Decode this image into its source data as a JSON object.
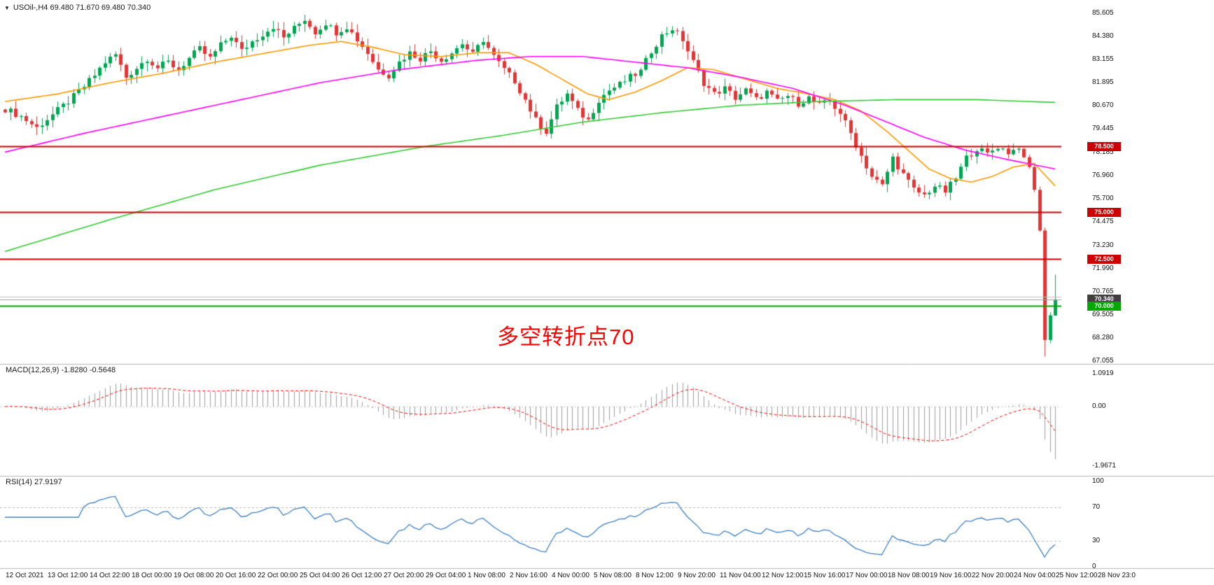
{
  "header": {
    "dropdown_icon": "▼",
    "title": "USOil-,H4 69.480 71.670 69.480 70.340"
  },
  "annotation": {
    "text": "多空转折点70",
    "color": "#FF0000"
  },
  "price_axis": {
    "labels": [
      "85.605",
      "84.380",
      "83.155",
      "81.895",
      "80.670",
      "79.445",
      "78.185",
      "76.960",
      "75.700",
      "74.475",
      "73.230",
      "71.990",
      "70.765",
      "69.505",
      "68.280",
      "67.055"
    ],
    "values": [
      85.605,
      84.38,
      83.155,
      81.895,
      80.67,
      79.445,
      78.185,
      76.96,
      75.7,
      74.475,
      73.23,
      71.99,
      70.765,
      69.505,
      68.28,
      67.055
    ]
  },
  "levels": [
    {
      "value": 78.5,
      "label": "78.500",
      "line_color": "#CC0000",
      "tag_bg": "#CC0000",
      "tag_fg": "#FFFFFF",
      "line_width": 2
    },
    {
      "value": 75.0,
      "label": "75.000",
      "line_color": "#CC0000",
      "tag_bg": "#CC0000",
      "tag_fg": "#FFFFFF",
      "line_width": 2
    },
    {
      "value": 72.5,
      "label": "72.500",
      "line_color": "#CC0000",
      "tag_bg": "#CC0000",
      "tag_fg": "#FFFFFF",
      "line_width": 2
    },
    {
      "value": 70.5,
      "label": "",
      "line_color": "#C0C0C0",
      "tag_bg": "",
      "tag_fg": "",
      "line_width": 1
    },
    {
      "value": 70.34,
      "label": "70.340",
      "line_color": "#9E9E9E",
      "tag_bg": "#3F3F3F",
      "tag_fg": "#FFFFFF",
      "line_width": 1
    },
    {
      "value": 70.0,
      "label": "70.000",
      "line_color": "#00A800",
      "tag_bg": "#00A800",
      "tag_fg": "#FFFFFF",
      "line_width": 2
    }
  ],
  "chart_data": {
    "type": "candlestick",
    "symbol": "USOil-",
    "period": "H4",
    "bars": 201,
    "y_range": [
      67.055,
      85.605
    ],
    "last_bar": {
      "open": 69.48,
      "high": 71.67,
      "low": 69.48,
      "close": 70.34
    },
    "crash_low": 67.3,
    "price_anchors": [
      [
        0,
        80.5
      ],
      [
        3,
        80.1
      ],
      [
        6,
        79.5
      ],
      [
        9,
        80.2
      ],
      [
        12,
        80.9
      ],
      [
        15,
        81.7
      ],
      [
        17,
        82.3
      ],
      [
        19,
        83.0
      ],
      [
        21,
        83.4
      ],
      [
        23,
        82.2
      ],
      [
        25,
        82.7
      ],
      [
        27,
        83.2
      ],
      [
        29,
        82.7
      ],
      [
        31,
        83.0
      ],
      [
        33,
        82.6
      ],
      [
        35,
        83.2
      ],
      [
        37,
        83.7
      ],
      [
        39,
        83.2
      ],
      [
        41,
        83.9
      ],
      [
        43,
        84.4
      ],
      [
        45,
        83.6
      ],
      [
        47,
        84.1
      ],
      [
        49,
        84.5
      ],
      [
        51,
        84.9
      ],
      [
        53,
        84.3
      ],
      [
        55,
        84.8
      ],
      [
        57,
        85.3
      ],
      [
        59,
        84.6
      ],
      [
        61,
        85.1
      ],
      [
        63,
        84.6
      ],
      [
        65,
        84.9
      ],
      [
        67,
        84.2
      ],
      [
        69,
        83.5
      ],
      [
        71,
        82.6
      ],
      [
        73,
        82.3
      ],
      [
        75,
        83.0
      ],
      [
        77,
        83.5
      ],
      [
        79,
        83.2
      ],
      [
        81,
        83.6
      ],
      [
        83,
        83.1
      ],
      [
        85,
        83.5
      ],
      [
        87,
        84.0
      ],
      [
        89,
        83.4
      ],
      [
        91,
        84.2
      ],
      [
        93,
        83.3
      ],
      [
        95,
        82.6
      ],
      [
        97,
        82.0
      ],
      [
        99,
        81.0
      ],
      [
        101,
        79.9
      ],
      [
        103,
        79.3
      ],
      [
        105,
        80.6
      ],
      [
        107,
        81.3
      ],
      [
        109,
        80.4
      ],
      [
        111,
        79.9
      ],
      [
        113,
        81.0
      ],
      [
        115,
        81.5
      ],
      [
        117,
        81.8
      ],
      [
        119,
        82.2
      ],
      [
        121,
        82.5
      ],
      [
        123,
        83.6
      ],
      [
        125,
        84.4
      ],
      [
        127,
        84.8
      ],
      [
        129,
        84.2
      ],
      [
        131,
        83.0
      ],
      [
        133,
        81.9
      ],
      [
        135,
        81.3
      ],
      [
        137,
        81.6
      ],
      [
        139,
        81.1
      ],
      [
        141,
        81.5
      ],
      [
        143,
        81.0
      ],
      [
        145,
        81.4
      ],
      [
        147,
        80.9
      ],
      [
        149,
        81.2
      ],
      [
        151,
        80.8
      ],
      [
        153,
        81.1
      ],
      [
        155,
        80.7
      ],
      [
        157,
        80.9
      ],
      [
        159,
        80.3
      ],
      [
        161,
        79.2
      ],
      [
        163,
        78.0
      ],
      [
        165,
        76.9
      ],
      [
        167,
        76.4
      ],
      [
        169,
        77.9
      ],
      [
        171,
        77.0
      ],
      [
        173,
        76.2
      ],
      [
        175,
        75.9
      ],
      [
        177,
        76.4
      ],
      [
        179,
        76.1
      ],
      [
        181,
        76.8
      ],
      [
        183,
        77.9
      ],
      [
        185,
        78.4
      ],
      [
        187,
        78.1
      ],
      [
        189,
        78.5
      ],
      [
        191,
        78.2
      ],
      [
        193,
        78.4
      ],
      [
        194,
        77.9
      ],
      [
        195,
        77.4
      ],
      [
        196,
        76.2
      ],
      [
        197,
        74.0
      ],
      [
        198,
        68.2
      ],
      [
        199,
        69.5
      ],
      [
        200,
        70.34
      ]
    ],
    "moving_averages": [
      {
        "name": "ma-fast-orange",
        "color": "#FF9900",
        "path": [
          [
            0,
            80.9
          ],
          [
            10,
            81.3
          ],
          [
            20,
            81.9
          ],
          [
            30,
            82.4
          ],
          [
            40,
            83.0
          ],
          [
            50,
            83.5
          ],
          [
            58,
            83.9
          ],
          [
            64,
            84.1
          ],
          [
            70,
            83.8
          ],
          [
            76,
            83.4
          ],
          [
            83,
            83.3
          ],
          [
            90,
            83.5
          ],
          [
            96,
            83.5
          ],
          [
            101,
            82.9
          ],
          [
            106,
            82.1
          ],
          [
            111,
            81.3
          ],
          [
            115,
            81.0
          ],
          [
            120,
            81.4
          ],
          [
            125,
            82.0
          ],
          [
            130,
            82.7
          ],
          [
            135,
            82.6
          ],
          [
            141,
            82.1
          ],
          [
            147,
            81.6
          ],
          [
            153,
            81.3
          ],
          [
            158,
            81.0
          ],
          [
            163,
            80.4
          ],
          [
            168,
            79.3
          ],
          [
            172,
            78.3
          ],
          [
            176,
            77.3
          ],
          [
            180,
            76.8
          ],
          [
            184,
            76.6
          ],
          [
            188,
            76.9
          ],
          [
            192,
            77.4
          ],
          [
            196,
            77.6
          ],
          [
            200,
            76.4
          ]
        ]
      },
      {
        "name": "ma-mid-magenta",
        "color": "#FF00FF",
        "path": [
          [
            0,
            78.2
          ],
          [
            15,
            79.2
          ],
          [
            30,
            80.1
          ],
          [
            45,
            81.0
          ],
          [
            60,
            81.9
          ],
          [
            75,
            82.6
          ],
          [
            90,
            83.1
          ],
          [
            100,
            83.3
          ],
          [
            110,
            83.3
          ],
          [
            120,
            83.0
          ],
          [
            130,
            82.7
          ],
          [
            140,
            82.2
          ],
          [
            150,
            81.6
          ],
          [
            160,
            80.7
          ],
          [
            168,
            79.8
          ],
          [
            175,
            79.0
          ],
          [
            183,
            78.3
          ],
          [
            191,
            77.8
          ],
          [
            200,
            77.3
          ]
        ]
      },
      {
        "name": "ma-slow-green",
        "color": "#33CC33",
        "path": [
          [
            0,
            72.9
          ],
          [
            20,
            74.6
          ],
          [
            40,
            76.2
          ],
          [
            60,
            77.5
          ],
          [
            80,
            78.5
          ],
          [
            95,
            79.1
          ],
          [
            110,
            79.8
          ],
          [
            125,
            80.3
          ],
          [
            140,
            80.7
          ],
          [
            155,
            80.9
          ],
          [
            170,
            81.0
          ],
          [
            185,
            81.0
          ],
          [
            200,
            80.85
          ]
        ]
      }
    ],
    "colors": {
      "up": "#00A651",
      "down": "#E23636",
      "macd_hist": "#9E9E9E",
      "macd_signal": "#FF0000",
      "rsi": "#4080C0",
      "rsi_levels": "#B8B8B8"
    }
  },
  "indicators": {
    "macd": {
      "label": "MACD(12,26,9) -1.8280 -0.5648",
      "params": [
        12,
        26,
        9
      ],
      "values": [
        -1.828,
        -0.5648
      ],
      "axis": [
        "1.0919",
        "0.00",
        "-1.9671"
      ],
      "axis_values": [
        1.0919,
        0,
        -1.9671
      ]
    },
    "rsi": {
      "label": "RSI(14) 27.9197",
      "period": 14,
      "value": 27.9197,
      "axis": [
        "100",
        "70",
        "30",
        "0"
      ],
      "axis_values": [
        100,
        70,
        30,
        0
      ],
      "levels": [
        70,
        30
      ]
    }
  },
  "time_axis": {
    "labels": [
      "12 Oct 2021",
      "13 Oct 12:00",
      "14 Oct 22:00",
      "18 Oct 00:00",
      "19 Oct 08:00",
      "20 Oct 16:00",
      "22 Oct 00:00",
      "25 Oct 04:00",
      "26 Oct 12:00",
      "27 Oct 20:00",
      "29 Oct 04:00",
      "1 Nov 08:00",
      "2 Nov 16:00",
      "4 Nov 00:00",
      "5 Nov 08:00",
      "8 Nov 12:00",
      "9 Nov 20:00",
      "11 Nov 04:00",
      "12 Nov 12:00",
      "15 Nov 16:00",
      "17 Nov 00:00",
      "18 Nov 08:00",
      "19 Nov 16:00",
      "22 Nov 20:00",
      "24 Nov 04:00",
      "25 Nov 12:00",
      "28 Nov 23:0"
    ]
  }
}
